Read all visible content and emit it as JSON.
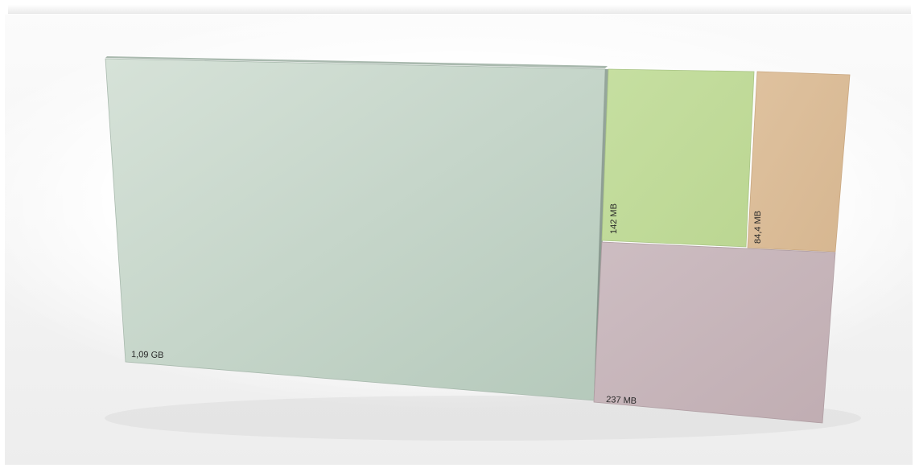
{
  "chart_data": {
    "type": "treemap",
    "tiles": [
      {
        "label": "1,09 GB",
        "size_mb": 1116,
        "color": "#c5d6cb"
      },
      {
        "label": "237 MB",
        "size_mb": 237,
        "color": "#c6b3b8"
      },
      {
        "label": "142 MB",
        "size_mb": 142,
        "color": "#c0db98"
      },
      {
        "label": "84,4 MB",
        "size_mb": 84.4,
        "color": "#dbbb97"
      }
    ]
  }
}
